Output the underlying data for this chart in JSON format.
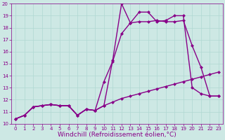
{
  "xlabel": "Windchill (Refroidissement éolien,°C)",
  "bg_color": "#cde8e4",
  "line_color": "#880088",
  "xlim": [
    -0.5,
    23.5
  ],
  "ylim": [
    10,
    20
  ],
  "xticks": [
    0,
    1,
    2,
    3,
    4,
    5,
    6,
    7,
    8,
    9,
    10,
    11,
    12,
    13,
    14,
    15,
    16,
    17,
    18,
    19,
    20,
    21,
    22,
    23
  ],
  "yticks": [
    10,
    11,
    12,
    13,
    14,
    15,
    16,
    17,
    18,
    19,
    20
  ],
  "line1_x": [
    0,
    1,
    2,
    3,
    4,
    5,
    6,
    7,
    8,
    9,
    10,
    11,
    12,
    13,
    14,
    15,
    16,
    17,
    18,
    19,
    20,
    21,
    22,
    23
  ],
  "line1_y": [
    10.4,
    10.7,
    11.4,
    11.5,
    11.6,
    11.5,
    11.5,
    10.7,
    11.2,
    11.1,
    11.5,
    11.8,
    12.1,
    12.3,
    12.5,
    12.7,
    12.9,
    13.1,
    13.3,
    13.5,
    13.7,
    13.9,
    14.1,
    14.3
  ],
  "line2_x": [
    0,
    1,
    2,
    3,
    4,
    5,
    6,
    7,
    8,
    9,
    10,
    11,
    12,
    13,
    14,
    15,
    16,
    17,
    18,
    19,
    20,
    21,
    22,
    23
  ],
  "line2_y": [
    10.4,
    10.7,
    11.4,
    11.5,
    11.6,
    11.5,
    11.5,
    10.7,
    11.2,
    11.1,
    13.5,
    15.2,
    17.5,
    18.4,
    18.5,
    18.5,
    18.6,
    18.5,
    18.5,
    18.6,
    16.5,
    14.7,
    12.3,
    12.3
  ],
  "line3_x": [
    0,
    1,
    2,
    3,
    4,
    5,
    6,
    7,
    8,
    9,
    10,
    11,
    12,
    13,
    14,
    15,
    16,
    17,
    18,
    19,
    20,
    21,
    22,
    23
  ],
  "line3_y": [
    10.4,
    10.7,
    11.4,
    11.5,
    11.6,
    11.5,
    11.5,
    10.7,
    11.2,
    11.1,
    11.5,
    15.3,
    20.0,
    18.4,
    19.3,
    19.3,
    18.5,
    18.6,
    19.0,
    19.0,
    13.0,
    12.5,
    12.3,
    12.3
  ],
  "marker": "D",
  "markersize": 2.5,
  "linewidth": 1.0,
  "grid_color": "#b0d8d2",
  "tick_fontsize": 5.0,
  "xlabel_fontsize": 6.5
}
